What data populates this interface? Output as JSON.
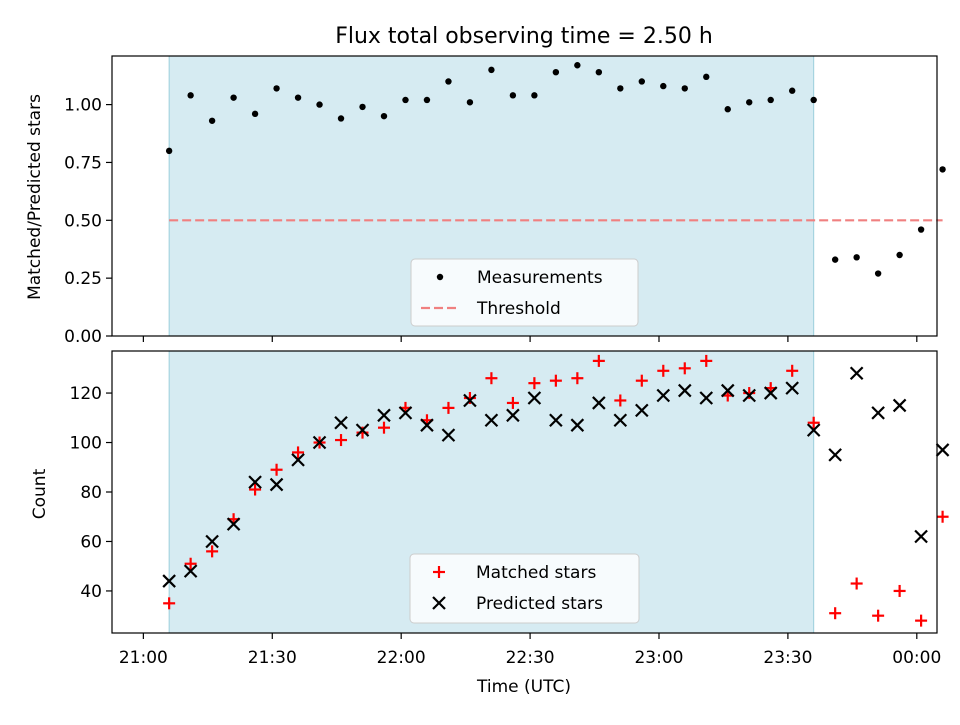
{
  "chart_data": {
    "title": "Flux total observing time = 2.50 h",
    "xlabel": "Time (UTC)",
    "x_ticks": [
      "21:00",
      "21:30",
      "22:00",
      "22:30",
      "23:00",
      "23:30",
      "00:00"
    ],
    "x_times": [
      "21:06",
      "21:11",
      "21:16",
      "21:21",
      "21:26",
      "21:31",
      "21:36",
      "21:41",
      "21:46",
      "21:51",
      "21:56",
      "22:01",
      "22:06",
      "22:11",
      "22:16",
      "22:21",
      "22:26",
      "22:31",
      "22:36",
      "22:41",
      "22:46",
      "22:51",
      "22:56",
      "23:01",
      "23:06",
      "23:11",
      "23:16",
      "23:21",
      "23:26",
      "23:31",
      "23:36",
      "23:41",
      "23:46",
      "23:51",
      "23:56",
      "00:01",
      "00:06"
    ],
    "shaded_span": [
      "21:06",
      "23:36"
    ],
    "panels": [
      {
        "type": "scatter",
        "ylabel": "Matched/Predicted stars",
        "ylim": [
          0,
          1.21
        ],
        "y_ticks": [
          "0.00",
          "0.25",
          "0.50",
          "0.75",
          "1.00"
        ],
        "series": [
          {
            "name": "Measurements",
            "marker": "dot",
            "color": "#000000",
            "values": [
              0.8,
              1.04,
              0.93,
              1.03,
              0.96,
              1.07,
              1.03,
              1.0,
              0.94,
              0.99,
              0.95,
              1.02,
              1.02,
              1.1,
              1.01,
              1.15,
              1.04,
              1.04,
              1.14,
              1.17,
              1.14,
              1.07,
              1.1,
              1.08,
              1.07,
              1.12,
              0.98,
              1.01,
              1.02,
              1.06,
              1.02,
              0.33,
              0.34,
              0.27,
              0.35,
              0.46,
              0.72
            ]
          }
        ],
        "threshold": {
          "name": "Threshold",
          "value": 0.5,
          "color": "#f08080",
          "x_range": [
            "21:06",
            "00:06"
          ]
        }
      },
      {
        "type": "scatter",
        "ylabel": "Count",
        "ylim": [
          23,
          137
        ],
        "y_ticks": [
          "40",
          "60",
          "80",
          "100",
          "120"
        ],
        "series": [
          {
            "name": "Matched stars",
            "marker": "plus",
            "color": "#ff0000",
            "values": [
              35,
              51,
              56,
              69,
              81,
              89,
              96,
              100,
              101,
              104,
              106,
              114,
              109,
              114,
              118,
              126,
              116,
              124,
              125,
              126,
              133,
              117,
              125,
              129,
              130,
              133,
              119,
              120,
              122,
              129,
              108,
              31,
              43,
              30,
              40,
              28,
              70
            ]
          },
          {
            "name": "Predicted stars",
            "marker": "x",
            "color": "#000000",
            "values": [
              44,
              48,
              60,
              67,
              84,
              83,
              93,
              100,
              108,
              105,
              111,
              112,
              107,
              103,
              117,
              109,
              111,
              118,
              109,
              107,
              116,
              109,
              113,
              119,
              121,
              118,
              121,
              119,
              120,
              122,
              105,
              95,
              128,
              112,
              115,
              62,
              97
            ]
          }
        ]
      }
    ]
  },
  "colors": {
    "shade": "#add8e6",
    "shade_opacity": 0.5
  }
}
